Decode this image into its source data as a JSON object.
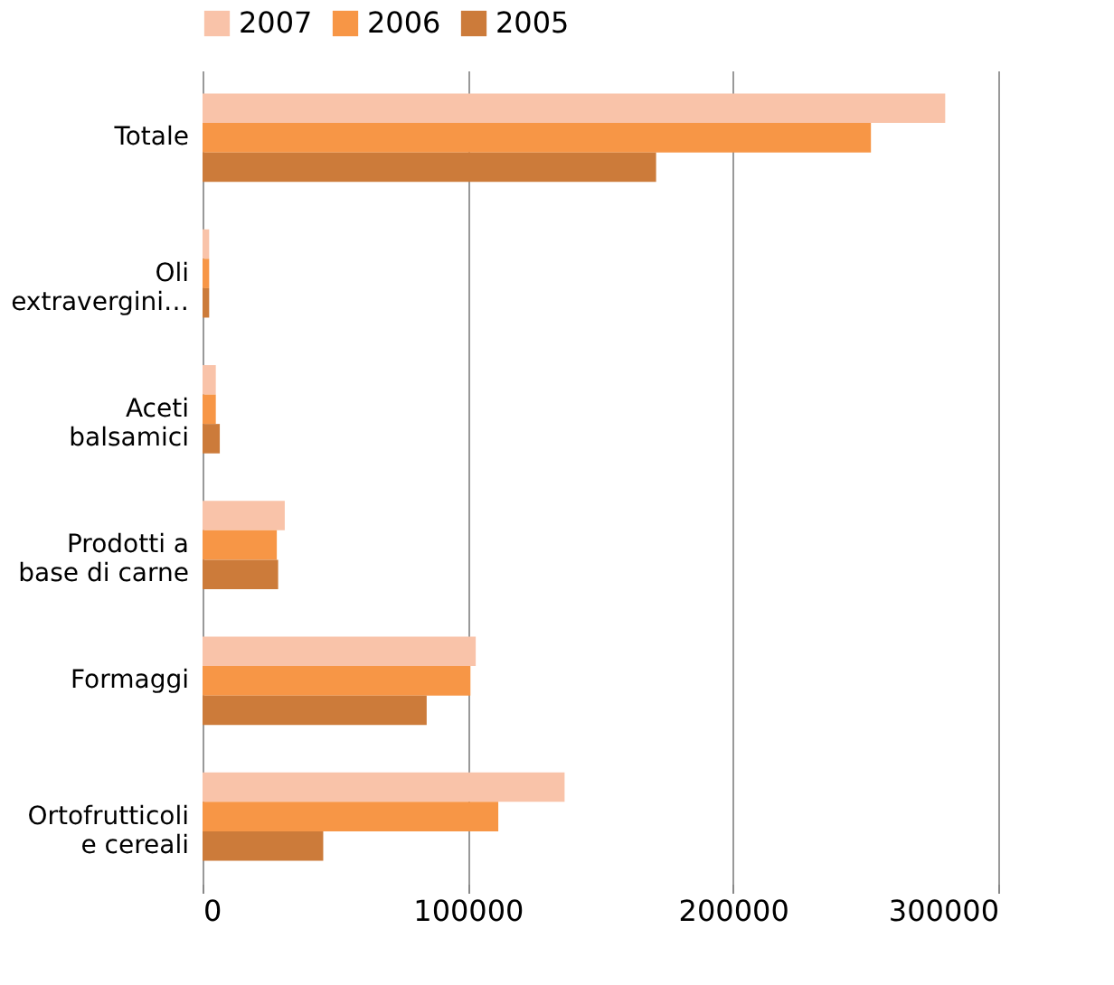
{
  "chart_data": {
    "type": "bar",
    "orientation": "horizontal",
    "categories": [
      "Totale",
      "Oli extravergini…",
      "Aceti balsamici",
      "Prodotti a base di carne",
      "Formaggi",
      "Ortofrutticoli e cereali"
    ],
    "series": [
      {
        "name": "2007",
        "color": "#f9c3a9",
        "values": [
          280000,
          2500,
          5000,
          31000,
          103000,
          136500
        ]
      },
      {
        "name": "2006",
        "color": "#f79646",
        "values": [
          252000,
          2500,
          5000,
          28000,
          101000,
          111500
        ]
      },
      {
        "name": "2005",
        "color": "#cc7b3a",
        "values": [
          171000,
          2500,
          6500,
          28500,
          84500,
          45500
        ]
      }
    ],
    "xlim": [
      0,
      300000
    ],
    "xticks": [
      0,
      100000,
      200000,
      300000
    ],
    "grid": "x",
    "legend": "top"
  }
}
